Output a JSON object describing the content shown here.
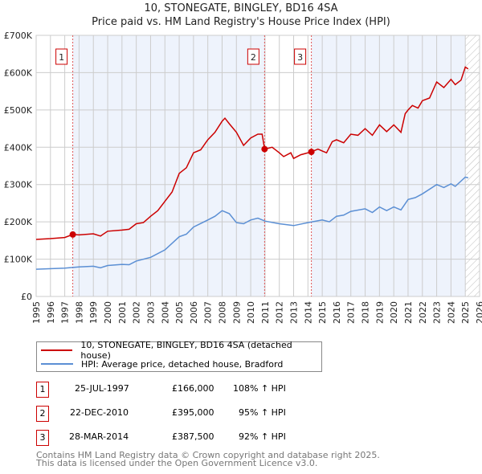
{
  "title": "10, STONEGATE, BINGLEY, BD16 4SA",
  "subtitle": "Price paid vs. HM Land Registry's House Price Index (HPI)",
  "colors": {
    "property": "#cc0000",
    "hpi": "#5b8fd4",
    "shade": "#eef3fc"
  },
  "legend": [
    {
      "label": "10, STONEGATE, BINGLEY, BD16 4SA (detached house)",
      "color": "#cc0000"
    },
    {
      "label": "HPI: Average price, detached house, Bradford",
      "color": "#5b8fd4"
    }
  ],
  "sales": [
    {
      "id": "1",
      "date": "25-JUL-1997",
      "price": "£166,000",
      "hpi": "108% ↑ HPI",
      "x": 1997.56,
      "value": 166000
    },
    {
      "id": "2",
      "date": "22-DEC-2010",
      "price": "£395,000",
      "hpi": "95% ↑ HPI",
      "x": 2010.97,
      "value": 395000
    },
    {
      "id": "3",
      "date": "28-MAR-2014",
      "price": "£387,500",
      "hpi": "92% ↑ HPI",
      "x": 2014.24,
      "value": 387500
    }
  ],
  "footer": [
    "Contains HM Land Registry data © Crown copyright and database right 2025.",
    "This data is licensed under the Open Government Licence v3.0."
  ],
  "chart_data": {
    "type": "line",
    "xlim": [
      1995,
      2026
    ],
    "ylim": [
      0,
      700000
    ],
    "yticks": [
      0,
      100000,
      200000,
      300000,
      400000,
      500000,
      600000,
      700000
    ],
    "ytick_labels": [
      "£0",
      "£100K",
      "£200K",
      "£300K",
      "£400K",
      "£500K",
      "£600K",
      "£700K"
    ],
    "xticks": [
      "1995",
      "1996",
      "1997",
      "1998",
      "1999",
      "2000",
      "2001",
      "2002",
      "2003",
      "2004",
      "2005",
      "2006",
      "2007",
      "2008",
      "2009",
      "2010",
      "2011",
      "2012",
      "2013",
      "2014",
      "2015",
      "2016",
      "2017",
      "2018",
      "2019",
      "2020",
      "2021",
      "2022",
      "2023",
      "2024",
      "2025",
      "2026"
    ],
    "forecast_from": 2025.0,
    "grid": true,
    "series": [
      {
        "name": "10, STONEGATE, BINGLEY, BD16 4SA (detached house)",
        "color": "#cc0000",
        "x": [
          1995,
          1996,
          1997,
          1997.56,
          1998,
          1999,
          1999.5,
          2000,
          2001,
          2001.5,
          2002,
          2002.5,
          2003,
          2003.5,
          2004,
          2004.5,
          2005,
          2005.5,
          2006,
          2006.5,
          2007,
          2007.5,
          2008,
          2008.2,
          2008.5,
          2009,
          2009.5,
          2010,
          2010.5,
          2010.8,
          2010.97,
          2011.5,
          2012,
          2012.3,
          2012.8,
          2013,
          2013.5,
          2014,
          2014.24,
          2014.7,
          2015,
          2015.3,
          2015.7,
          2016,
          2016.5,
          2017,
          2017.5,
          2018,
          2018.5,
          2019,
          2019.5,
          2020,
          2020.5,
          2020.8,
          2021,
          2021.3,
          2021.7,
          2022,
          2022.5,
          2023,
          2023.5,
          2024,
          2024.3,
          2024.7,
          2025,
          2025.2
        ],
        "y": [
          153,
          155,
          158,
          166,
          165,
          168,
          162,
          175,
          178,
          180,
          195,
          198,
          215,
          230,
          255,
          280,
          330,
          345,
          385,
          393,
          420,
          440,
          470,
          478,
          463,
          440,
          405,
          425,
          435,
          435,
          395,
          400,
          385,
          375,
          385,
          370,
          380,
          385,
          387.5,
          395,
          390,
          385,
          415,
          420,
          412,
          435,
          432,
          450,
          432,
          460,
          442,
          460,
          440,
          490,
          500,
          512,
          505,
          525,
          532,
          575,
          560,
          582,
          568,
          580,
          615,
          610
        ],
        "unit": "thousand GBP"
      },
      {
        "name": "HPI: Average price, detached house, Bradford",
        "color": "#5b8fd4",
        "x": [
          1995,
          1997,
          1998,
          1999,
          1999.5,
          2000,
          2001,
          2001.5,
          2002,
          2003,
          2004,
          2005,
          2005.5,
          2006,
          2007,
          2007.5,
          2008,
          2008.5,
          2009,
          2009.5,
          2010,
          2010.5,
          2011,
          2012,
          2013,
          2014,
          2015,
          2015.5,
          2016,
          2016.5,
          2017,
          2018,
          2018.5,
          2019,
          2019.5,
          2020,
          2020.5,
          2021,
          2021.5,
          2022,
          2023,
          2023.5,
          2024,
          2024.3,
          2025,
          2025.2
        ],
        "y": [
          73,
          76,
          79,
          81,
          77,
          83,
          86,
          85,
          95,
          105,
          125,
          160,
          167,
          186,
          205,
          215,
          230,
          222,
          198,
          195,
          205,
          210,
          202,
          195,
          190,
          198,
          205,
          200,
          215,
          218,
          228,
          235,
          225,
          240,
          230,
          240,
          232,
          260,
          265,
          275,
          300,
          292,
          302,
          295,
          320,
          318
        ],
        "unit": "thousand GBP"
      }
    ]
  }
}
